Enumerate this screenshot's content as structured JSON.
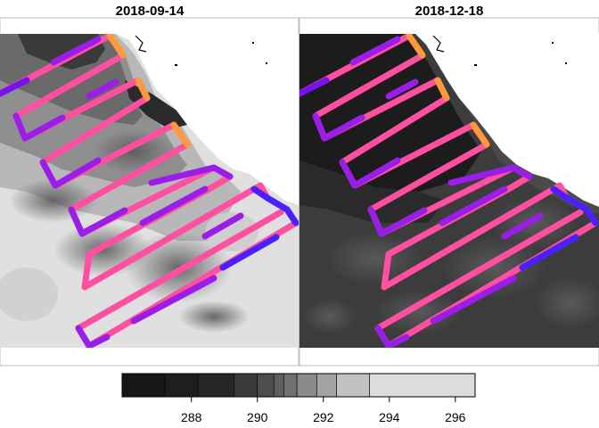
{
  "chart_data": {
    "type": "heatmap",
    "description_free": true,
    "panels": [
      {
        "title": "2018-09-14",
        "background_tone": "light",
        "track_colors": [
          "#ff4fa0",
          "#9a1ee8",
          "#7a10f0",
          "#ff9a3a",
          "#4a20ff"
        ]
      },
      {
        "title": "2018-12-18",
        "background_tone": "dark",
        "track_colors": [
          "#ff4fa0",
          "#9a1ee8",
          "#7a10f0",
          "#ff9a3a",
          "#4a20ff"
        ]
      }
    ],
    "colorbar": {
      "ticks": [
        "288",
        "290",
        "292",
        "294",
        "296"
      ],
      "tick_values": [
        288,
        290,
        292,
        294,
        296
      ],
      "range": [
        285.9,
        296.6
      ],
      "breaks": [
        285.9,
        287.2,
        288.2,
        289.3,
        290.0,
        290.5,
        290.8,
        291.2,
        291.8,
        292.4,
        293.4,
        296.6
      ],
      "colors": [
        "#161616",
        "#1e1e1e",
        "#262626",
        "#3a3a3a",
        "#4d4d4d",
        "#5e5e5e",
        "#707070",
        "#8a8a8a",
        "#a3a3a3",
        "#c2c2c2",
        "#dcdcdc"
      ]
    }
  }
}
